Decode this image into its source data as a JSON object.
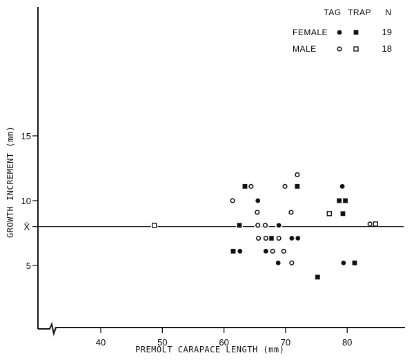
{
  "chart_data": {
    "type": "scatter",
    "title": "",
    "xlabel": "PREMOLT CARAPACE LENGTH (mm)",
    "ylabel": "GROWTH INCREMENT (mm)",
    "xlim": [
      31,
      87
    ],
    "ylim": [
      0,
      20
    ],
    "xticks": [
      40,
      50,
      60,
      70,
      80
    ],
    "yticks": [
      5,
      10,
      15
    ],
    "mean_line": {
      "label": "X̄",
      "value": 8.0
    },
    "grid": false,
    "legend_position": "top-right",
    "legend": {
      "columns": [
        "TAG",
        "TRAP",
        "N"
      ],
      "rows": [
        {
          "label": "FEMALE",
          "tag_marker": "filled-circle",
          "trap_marker": "filled-square",
          "n": "19"
        },
        {
          "label": "MALE",
          "tag_marker": "open-circle",
          "trap_marker": "open-square",
          "n": "18"
        }
      ]
    },
    "series": [
      {
        "name": "Female Tag",
        "marker": "filled-circle",
        "points": [
          [
            79.2,
            11.1
          ],
          [
            65.5,
            10.0
          ],
          [
            68.9,
            8.1
          ],
          [
            71.0,
            7.1
          ],
          [
            72.0,
            7.1
          ],
          [
            62.6,
            6.1
          ],
          [
            66.8,
            6.1
          ],
          [
            68.8,
            5.2
          ],
          [
            79.4,
            5.2
          ]
        ]
      },
      {
        "name": "Female Trap",
        "marker": "filled-square",
        "points": [
          [
            63.4,
            11.1
          ],
          [
            71.9,
            11.1
          ],
          [
            78.7,
            10.0
          ],
          [
            79.7,
            10.0
          ],
          [
            79.3,
            9.0
          ],
          [
            62.5,
            8.1
          ],
          [
            67.7,
            7.1
          ],
          [
            61.5,
            6.1
          ],
          [
            81.2,
            5.2
          ],
          [
            75.2,
            4.1
          ]
        ]
      },
      {
        "name": "Male Tag",
        "marker": "open-circle",
        "points": [
          [
            71.9,
            12.0
          ],
          [
            64.4,
            11.1
          ],
          [
            69.9,
            11.1
          ],
          [
            61.4,
            10.0
          ],
          [
            65.4,
            9.1
          ],
          [
            70.9,
            9.1
          ],
          [
            65.5,
            8.1
          ],
          [
            66.7,
            8.1
          ],
          [
            65.6,
            7.1
          ],
          [
            66.8,
            7.1
          ],
          [
            68.9,
            7.1
          ],
          [
            67.9,
            6.1
          ],
          [
            69.7,
            6.1
          ],
          [
            71.0,
            5.2
          ],
          [
            83.7,
            8.2
          ]
        ]
      },
      {
        "name": "Male Trap",
        "marker": "open-square",
        "points": [
          [
            48.7,
            8.1
          ],
          [
            77.1,
            9.0
          ],
          [
            84.6,
            8.2
          ]
        ]
      }
    ]
  }
}
